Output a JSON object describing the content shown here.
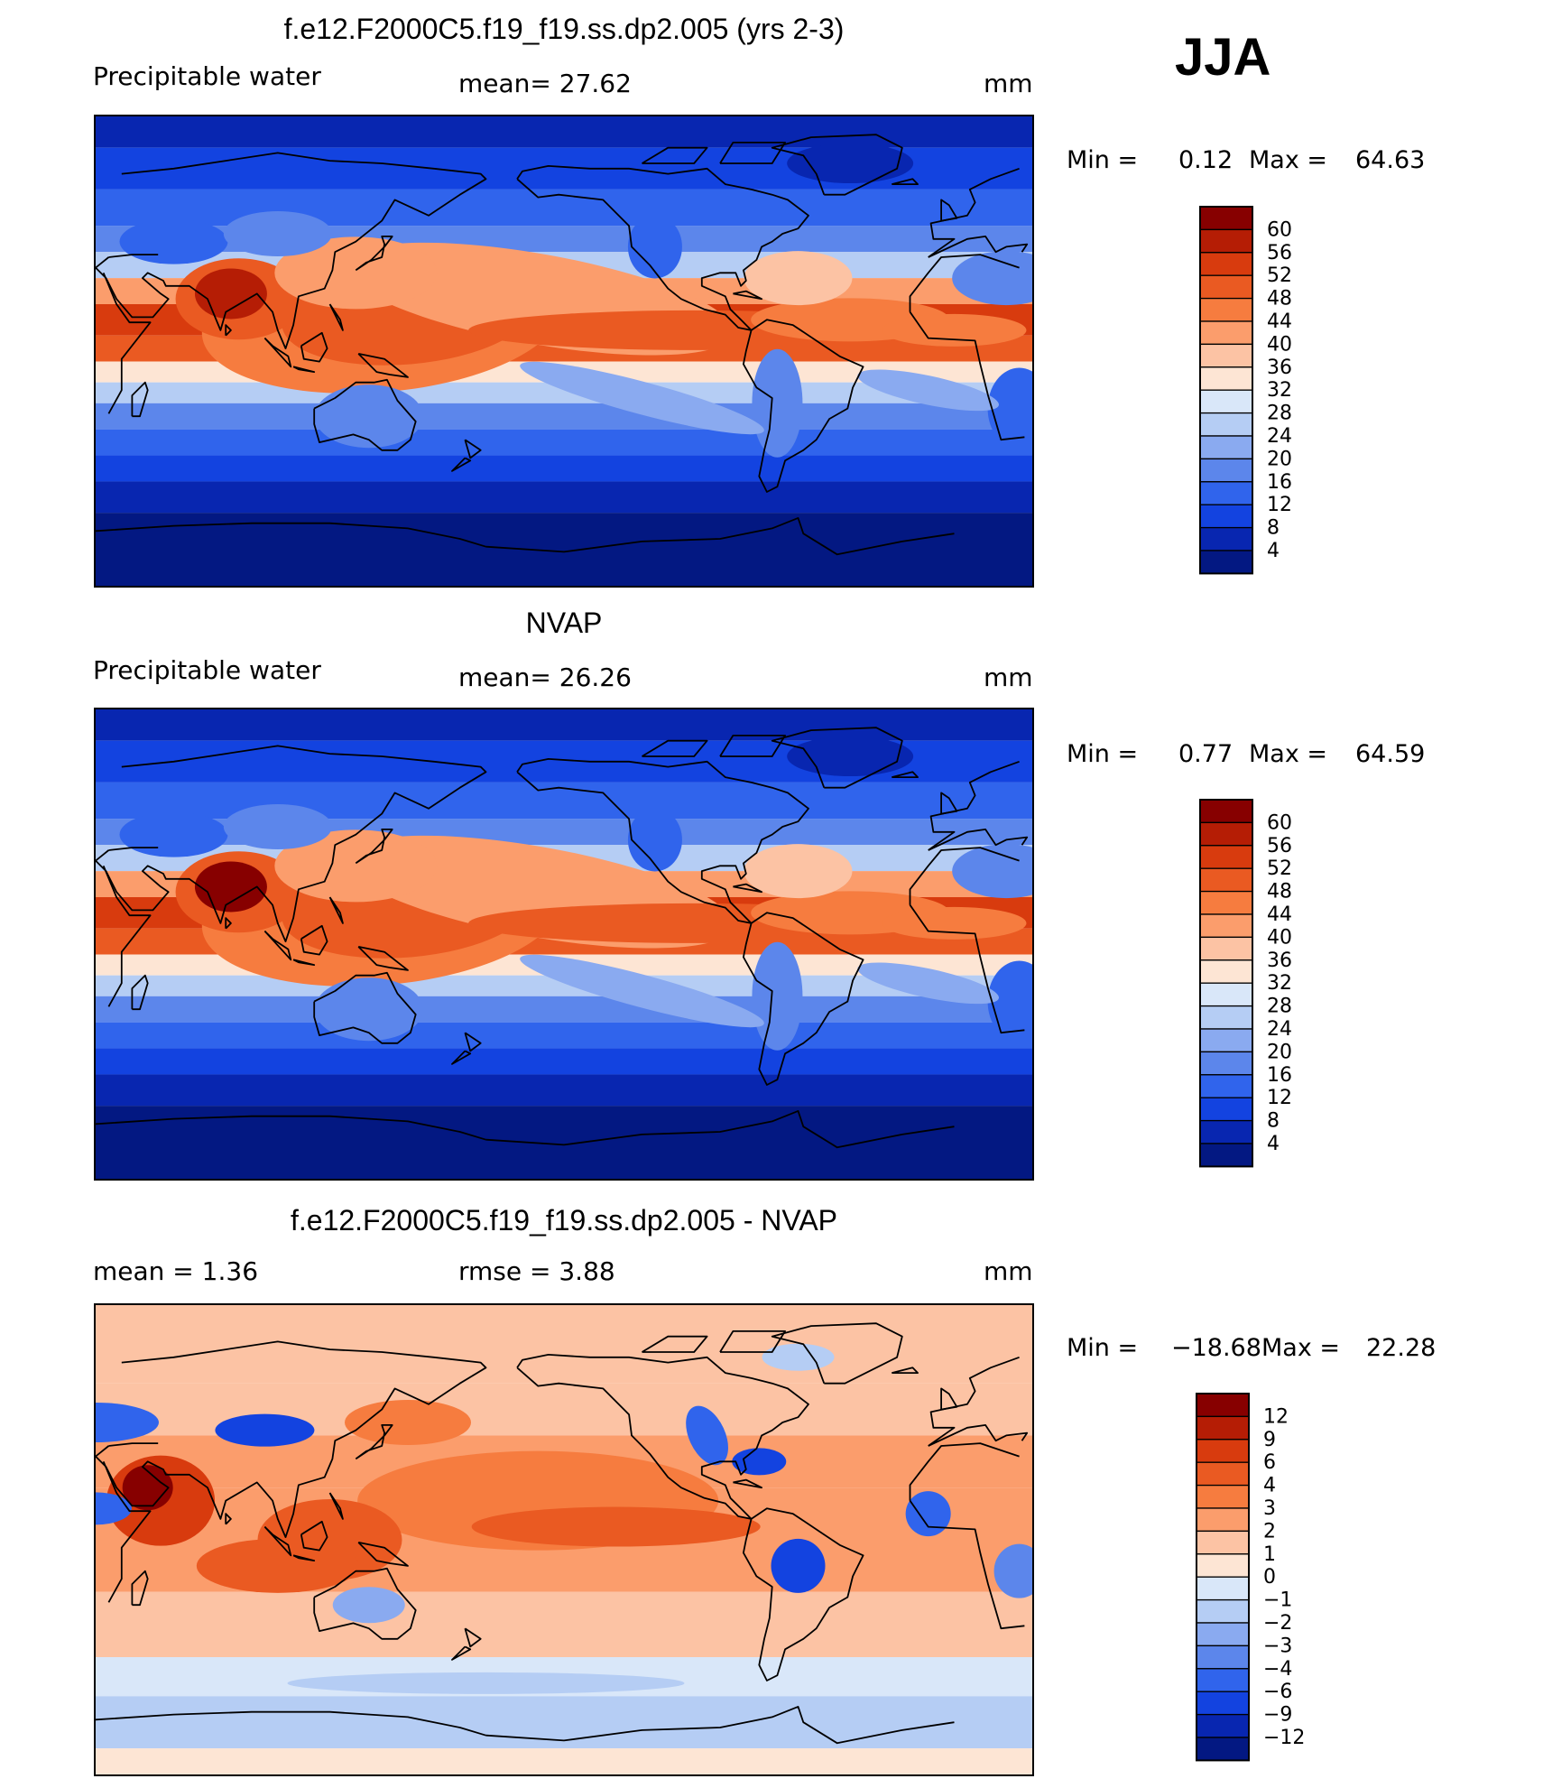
{
  "season": "JJA",
  "chart_data": [
    {
      "type": "heatmap",
      "title": "f.e12.F2000C5.f19_f19.ss.dp2.005 (yrs 2-3)",
      "left_label": "Precipitable water",
      "center_label": "mean=   27.62",
      "units": "mm",
      "min_label": "Min =",
      "min": "0.12",
      "max_label": "Max =",
      "max": "64.63",
      "levels": [
        "60",
        "56",
        "52",
        "48",
        "44",
        "40",
        "36",
        "32",
        "28",
        "24",
        "20",
        "16",
        "12",
        "8",
        "4"
      ],
      "colors": [
        "#870000",
        "#b51d05",
        "#d83b0e",
        "#ea5a22",
        "#f67c3f",
        "#fb9d6c",
        "#fcc3a4",
        "#fde5d4",
        "#d9e7f9",
        "#b5cdf4",
        "#8aaaf0",
        "#5c86eb",
        "#3064ec",
        "#1343e0",
        "#0826b0",
        "#031882"
      ],
      "map_mode": "model"
    },
    {
      "type": "heatmap",
      "title": "NVAP",
      "left_label": "Precipitable water",
      "center_label": "mean=   26.26",
      "units": "mm",
      "min_label": "Min =",
      "min": "0.77",
      "max_label": "Max =",
      "max": "64.59",
      "levels": [
        "60",
        "56",
        "52",
        "48",
        "44",
        "40",
        "36",
        "32",
        "28",
        "24",
        "20",
        "16",
        "12",
        "8",
        "4"
      ],
      "colors": [
        "#870000",
        "#b51d05",
        "#d83b0e",
        "#ea5a22",
        "#f67c3f",
        "#fb9d6c",
        "#fcc3a4",
        "#fde5d4",
        "#d9e7f9",
        "#b5cdf4",
        "#8aaaf0",
        "#5c86eb",
        "#3064ec",
        "#1343e0",
        "#0826b0",
        "#031882"
      ],
      "map_mode": "obs"
    },
    {
      "type": "heatmap",
      "title": "f.e12.F2000C5.f19_f19.ss.dp2.005 - NVAP",
      "left_label": "mean =      1.36",
      "center_label": "rmse =      3.88",
      "units": "mm",
      "min_label": "Min =",
      "min": "−18.68",
      "max_label": "Max =",
      "max": "22.28",
      "levels": [
        "12",
        "9",
        "6",
        "4",
        "3",
        "2",
        "1",
        "0",
        "−1",
        "−2",
        "−3",
        "−4",
        "−6",
        "−9",
        "−12"
      ],
      "colors": [
        "#870000",
        "#b51d05",
        "#d83b0e",
        "#ea5a22",
        "#f67c3f",
        "#fb9d6c",
        "#fcc3a4",
        "#fde5d4",
        "#d9e7f9",
        "#b5cdf4",
        "#8aaaf0",
        "#5c86eb",
        "#3064ec",
        "#1343e0",
        "#0826b0",
        "#031882"
      ],
      "map_mode": "diff"
    }
  ]
}
